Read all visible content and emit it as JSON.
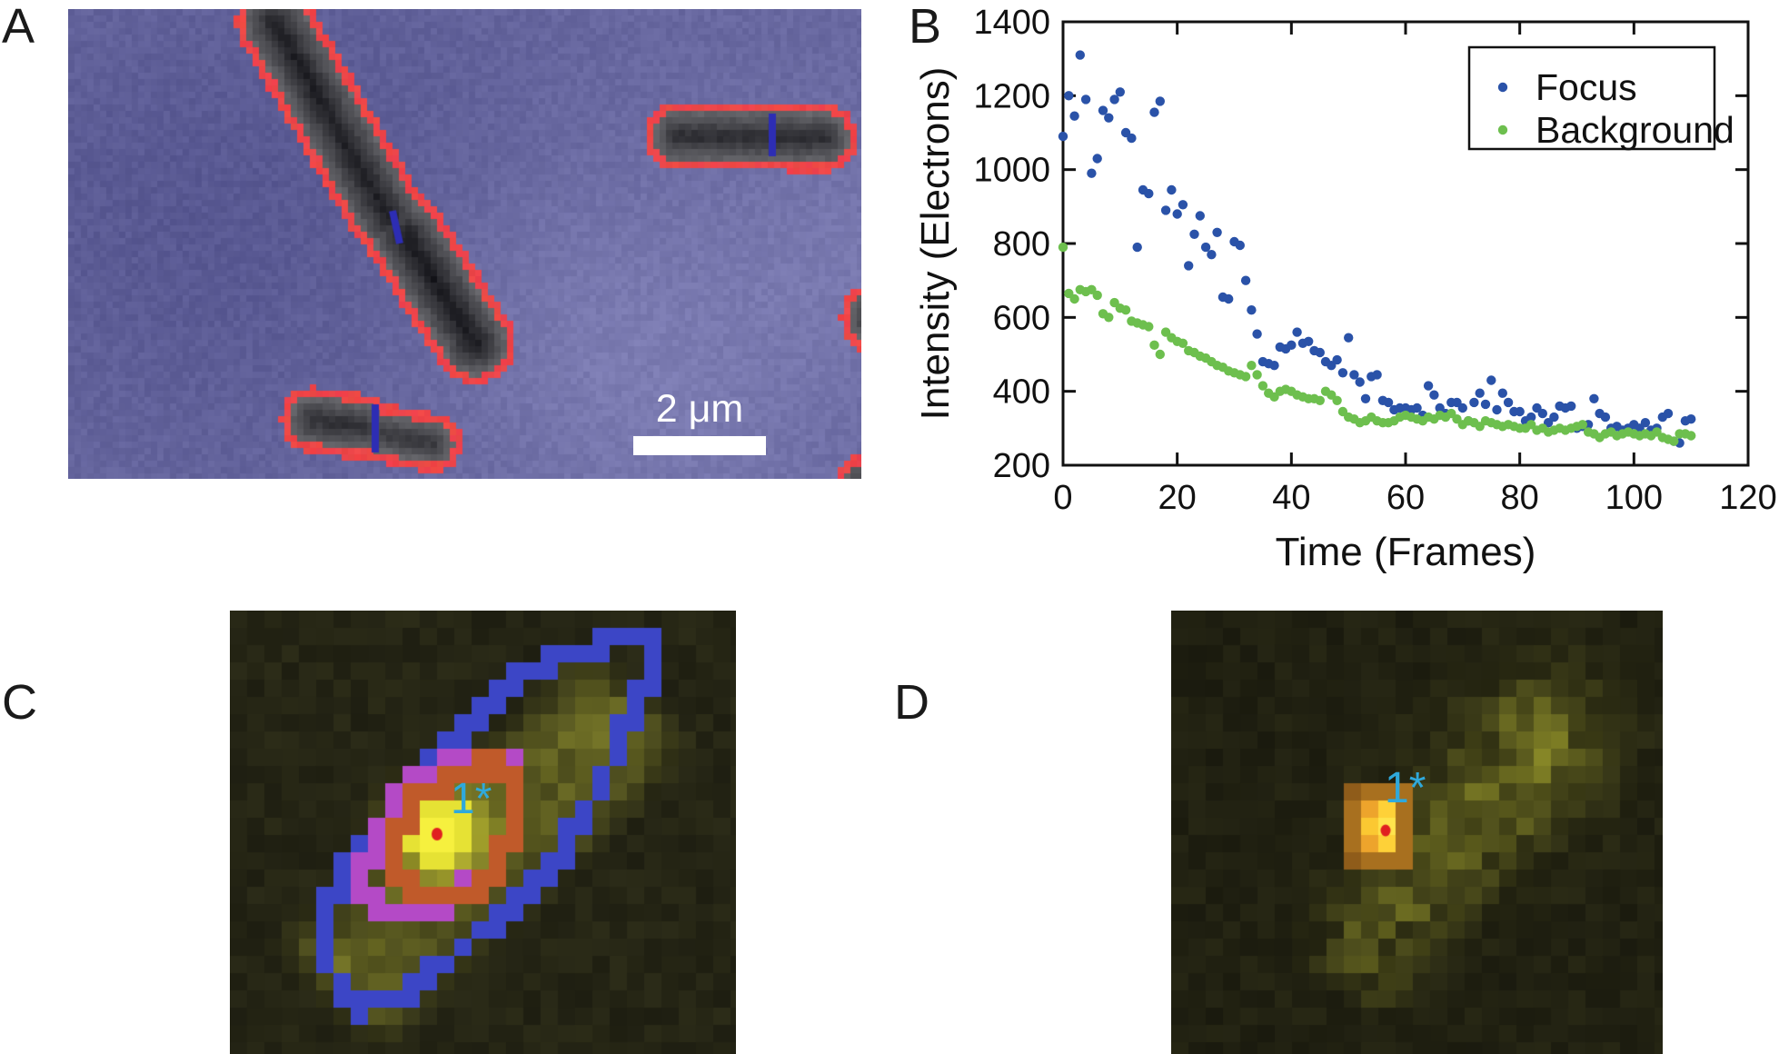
{
  "panels": {
    "a": {
      "label": "A",
      "scale_bar_label": "2 μm"
    },
    "b": {
      "label": "B"
    },
    "c": {
      "label": "C",
      "spot_label": "1*"
    },
    "d": {
      "label": "D",
      "spot_label": "1*"
    }
  },
  "colors": {
    "panel_a_background": "#6868a0",
    "cell_outline_red": "#e84646",
    "septum_blue": "#2d2db4",
    "scale_bar_white": "#ffffff",
    "focus_blue": "#2a52a8",
    "background_green": "#6dbf4e",
    "contour_outer_blue": "#3c46c6",
    "contour_mid_magenta": "#b44ac6",
    "contour_inner_orange": "#c05a2a",
    "spot_marker_red": "#e02020",
    "spot_label_cyan": "#2fa9dc",
    "axis_black": "#111111"
  },
  "chart_data": {
    "type": "scatter",
    "title": "",
    "xlabel": "Time (Frames)",
    "ylabel": "Intensity (Electrons)",
    "xlim": [
      0,
      120
    ],
    "ylim": [
      200,
      1400
    ],
    "xticks": [
      0,
      20,
      40,
      60,
      80,
      100,
      120
    ],
    "yticks": [
      200,
      400,
      600,
      800,
      1000,
      1200,
      1400
    ],
    "grid": false,
    "legend_position": "top-right",
    "series": [
      {
        "name": "Focus",
        "color": "#2a52a8",
        "x": [
          0,
          1,
          2,
          3,
          4,
          5,
          6,
          7,
          8,
          9,
          10,
          11,
          12,
          13,
          14,
          15,
          16,
          17,
          18,
          19,
          20,
          21,
          22,
          23,
          24,
          25,
          26,
          27,
          28,
          29,
          30,
          31,
          32,
          33,
          34,
          35,
          36,
          37,
          38,
          39,
          40,
          41,
          42,
          43,
          44,
          45,
          46,
          47,
          48,
          49,
          50,
          51,
          52,
          53,
          54,
          55,
          56,
          57,
          58,
          59,
          60,
          61,
          62,
          63,
          64,
          65,
          66,
          67,
          68,
          69,
          70,
          71,
          72,
          73,
          74,
          75,
          76,
          77,
          78,
          79,
          80,
          81,
          82,
          83,
          84,
          85,
          86,
          87,
          88,
          89,
          90,
          91,
          92,
          93,
          94,
          95,
          96,
          97,
          98,
          99,
          100,
          101,
          102,
          103,
          104,
          105,
          106,
          107,
          108,
          109,
          110
        ],
        "y": [
          1090,
          1200,
          1145,
          1310,
          1190,
          990,
          1030,
          1160,
          1140,
          1190,
          1210,
          1100,
          1085,
          790,
          945,
          935,
          1155,
          1185,
          890,
          945,
          880,
          905,
          740,
          825,
          875,
          790,
          770,
          830,
          655,
          650,
          805,
          795,
          700,
          620,
          555,
          480,
          475,
          470,
          520,
          515,
          525,
          560,
          530,
          535,
          510,
          505,
          480,
          470,
          485,
          450,
          545,
          445,
          425,
          380,
          440,
          445,
          375,
          370,
          350,
          355,
          355,
          350,
          355,
          335,
          415,
          390,
          355,
          340,
          370,
          370,
          355,
          320,
          370,
          395,
          365,
          430,
          350,
          395,
          370,
          345,
          345,
          320,
          330,
          355,
          340,
          315,
          330,
          360,
          355,
          360,
          300,
          305,
          310,
          380,
          340,
          330,
          300,
          305,
          295,
          300,
          310,
          300,
          315,
          295,
          300,
          330,
          340,
          265,
          260,
          320,
          325
        ]
      },
      {
        "name": "Background",
        "color": "#6dbf4e",
        "x": [
          0,
          1,
          2,
          3,
          4,
          5,
          6,
          7,
          8,
          9,
          10,
          11,
          12,
          13,
          14,
          15,
          16,
          17,
          18,
          19,
          20,
          21,
          22,
          23,
          24,
          25,
          26,
          27,
          28,
          29,
          30,
          31,
          32,
          33,
          34,
          35,
          36,
          37,
          38,
          39,
          40,
          41,
          42,
          43,
          44,
          45,
          46,
          47,
          48,
          49,
          50,
          51,
          52,
          53,
          54,
          55,
          56,
          57,
          58,
          59,
          60,
          61,
          62,
          63,
          64,
          65,
          66,
          67,
          68,
          69,
          70,
          71,
          72,
          73,
          74,
          75,
          76,
          77,
          78,
          79,
          80,
          81,
          82,
          83,
          84,
          85,
          86,
          87,
          88,
          89,
          90,
          91,
          92,
          93,
          94,
          95,
          96,
          97,
          98,
          99,
          100,
          101,
          102,
          103,
          104,
          105,
          106,
          107,
          108,
          109,
          110
        ],
        "y": [
          790,
          665,
          650,
          675,
          670,
          675,
          660,
          610,
          600,
          640,
          625,
          620,
          590,
          585,
          580,
          575,
          525,
          500,
          560,
          545,
          535,
          530,
          510,
          505,
          495,
          490,
          480,
          470,
          465,
          455,
          450,
          445,
          440,
          470,
          445,
          415,
          395,
          385,
          400,
          405,
          400,
          390,
          385,
          380,
          380,
          375,
          400,
          390,
          375,
          345,
          330,
          325,
          315,
          320,
          330,
          320,
          315,
          315,
          320,
          330,
          335,
          330,
          325,
          320,
          330,
          325,
          335,
          330,
          340,
          325,
          310,
          320,
          315,
          305,
          320,
          315,
          310,
          305,
          310,
          305,
          300,
          300,
          310,
          295,
          300,
          290,
          295,
          300,
          295,
          300,
          305,
          310,
          290,
          285,
          275,
          285,
          290,
          280,
          285,
          290,
          285,
          280,
          285,
          280,
          290,
          275,
          270,
          265,
          285,
          285,
          280
        ]
      }
    ]
  }
}
